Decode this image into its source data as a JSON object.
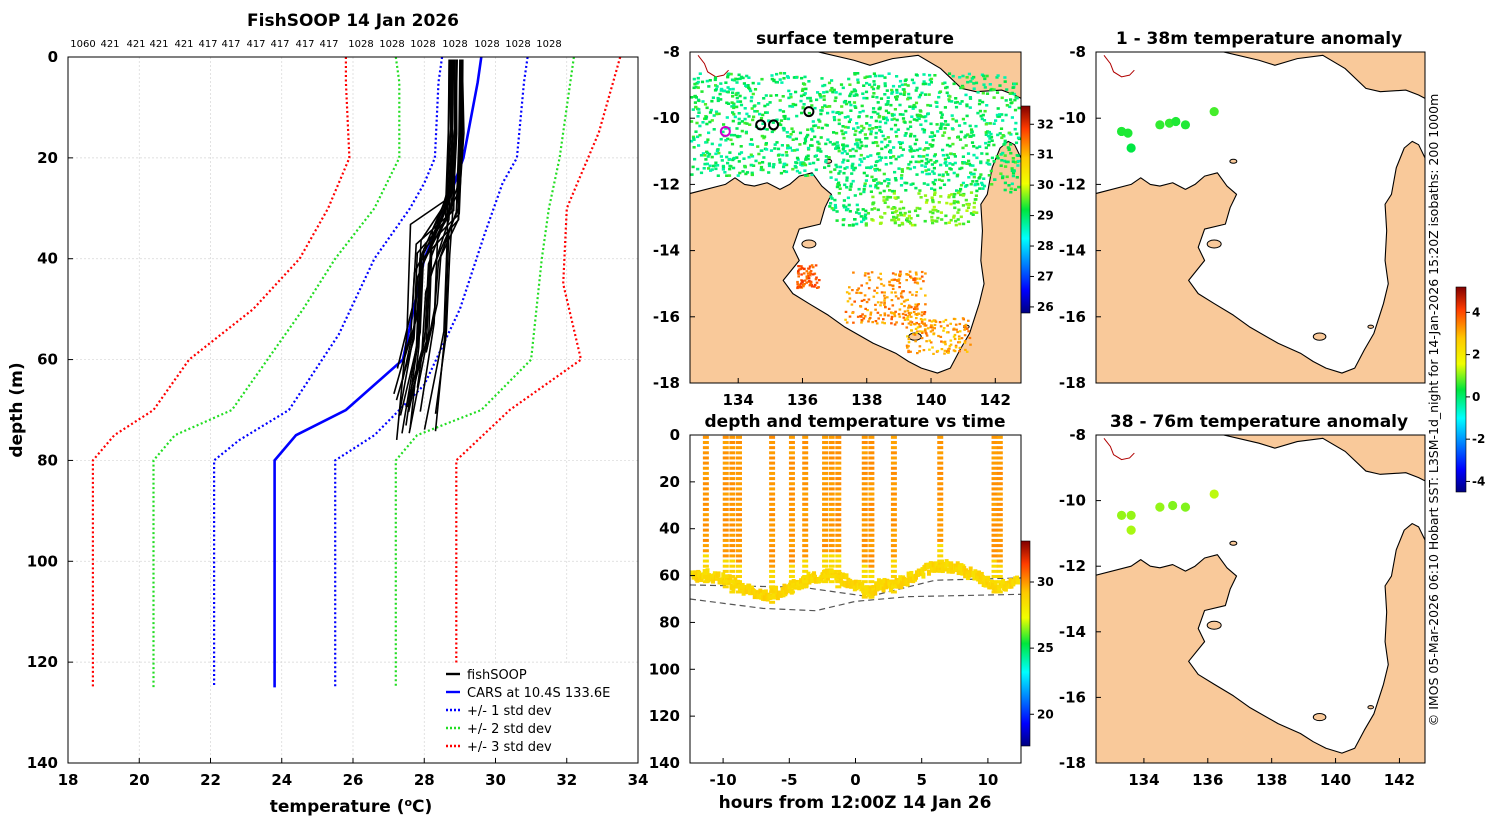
{
  "colors": {
    "fishsoop": "#000000",
    "cars": "#0000ff",
    "std1": "#0000ff",
    "std2": "#22dd22",
    "std3": "#ff0000",
    "land": "#f9c99a",
    "coast": "#000000",
    "grid": "#d6d6d6",
    "dashed": "#555555"
  },
  "chart_data": [
    {
      "id": "profile",
      "type": "line",
      "title": "FishSOOP 14 Jan 2026",
      "xlabel": "temperature (°C)",
      "ylabel": "depth (m)",
      "xlim": [
        18,
        34
      ],
      "ylim": [
        0,
        140
      ],
      "y_reversed": true,
      "grid": true,
      "xticks": [
        "18",
        "20",
        "22",
        "24",
        "26",
        "28",
        "30",
        "32",
        "34"
      ],
      "yticks": [
        "0",
        "20",
        "40",
        "60",
        "80",
        "100",
        "120",
        "140"
      ],
      "top_labels": [
        "1060",
        "421",
        "421",
        "421",
        "421",
        "417",
        "417",
        "417",
        "417",
        "417",
        "417",
        "1028",
        "1028",
        "1028",
        "1028",
        "1028",
        "1028",
        "1028"
      ],
      "legend": [
        {
          "label": "fishSOOP",
          "style": "solid",
          "color": "#000000"
        },
        {
          "label": "CARS at 10.4S 133.6E",
          "style": "solid",
          "color": "#0000ff"
        },
        {
          "label": "+/- 1 std dev",
          "style": "dotted",
          "color": "#0000ff"
        },
        {
          "label": "+/- 2 std dev",
          "style": "dotted",
          "color": "#22dd22"
        },
        {
          "label": "+/- 3 std dev",
          "style": "dotted",
          "color": "#ff0000"
        }
      ],
      "legend_position": "bottom-right",
      "cars_mean": {
        "temp": [
          29.6,
          29.5,
          29.1,
          28.6,
          28.0,
          27.4,
          25.8,
          24.4,
          23.8,
          23.8
        ],
        "depth": [
          0,
          5,
          20,
          30,
          40,
          60,
          70,
          75,
          80,
          125
        ]
      },
      "std_curves": [
        {
          "name": "minus1",
          "color": "#0000ff",
          "temp": [
            28.5,
            28.4,
            28.3,
            28.0,
            27.6,
            26.6,
            25.6,
            24.2,
            22.8,
            22.1,
            22.1
          ],
          "depth": [
            0,
            5,
            20,
            25,
            30,
            40,
            55,
            70,
            76,
            80,
            125
          ]
        },
        {
          "name": "plus1",
          "color": "#0000ff",
          "temp": [
            30.9,
            30.8,
            30.6,
            30.2,
            29.7,
            29.0,
            28.0,
            26.6,
            25.5,
            25.5
          ],
          "depth": [
            0,
            5,
            20,
            25,
            35,
            50,
            65,
            75,
            80,
            125
          ]
        },
        {
          "name": "minus2",
          "color": "#22dd22",
          "temp": [
            27.2,
            27.3,
            27.3,
            26.6,
            25.5,
            24.6,
            22.6,
            21.0,
            20.4,
            20.4
          ],
          "depth": [
            0,
            5,
            20,
            30,
            40,
            50,
            70,
            75,
            80,
            125
          ]
        },
        {
          "name": "plus2",
          "color": "#22dd22",
          "temp": [
            32.2,
            32.1,
            31.8,
            31.5,
            31.3,
            31.0,
            29.6,
            27.8,
            27.2,
            27.2
          ],
          "depth": [
            0,
            5,
            20,
            30,
            40,
            60,
            70,
            75,
            80,
            125
          ]
        },
        {
          "name": "minus3",
          "color": "#ff0000",
          "temp": [
            25.8,
            25.8,
            25.9,
            25.3,
            24.5,
            23.2,
            21.4,
            20.4,
            19.3,
            18.7,
            18.7
          ],
          "depth": [
            0,
            5,
            20,
            30,
            40,
            50,
            60,
            70,
            75,
            80,
            125
          ]
        },
        {
          "name": "plus3",
          "color": "#ff0000",
          "temp": [
            33.5,
            33.3,
            32.9,
            32.6,
            32.3,
            32.0,
            31.9,
            32.4,
            31.4,
            30.4,
            28.9,
            28.9
          ],
          "depth": [
            0,
            5,
            15,
            20,
            25,
            30,
            45,
            60,
            65,
            70,
            80,
            125
          ]
        }
      ],
      "fishsoop_bundle": {
        "surface_temp_range": [
          28.7,
          29.1
        ],
        "mixed_bottom_depth_range": [
          25,
          33
        ],
        "thermocline_temp_range": [
          27.3,
          28.7
        ],
        "bottom_depth_range": [
          58,
          76
        ],
        "count": 22
      }
    },
    {
      "id": "sst-map",
      "type": "heatmap",
      "title": "surface temperature",
      "xlim": [
        132.5,
        142.8
      ],
      "ylim": [
        -18,
        -8
      ],
      "xticks": [
        "134",
        "136",
        "138",
        "140",
        "142"
      ],
      "yticks": [
        "-8",
        "-10",
        "-12",
        "-14",
        "-16",
        "-18"
      ],
      "colorbar_ticks": [
        "26",
        "27",
        "28",
        "29",
        "30",
        "31",
        "32"
      ],
      "colorbar_range": [
        25.8,
        32.6
      ],
      "markers": [
        {
          "lon": 133.6,
          "lat": -10.4,
          "color": "#cc00cc"
        },
        {
          "lon": 134.7,
          "lat": -10.2,
          "color": "#000000"
        },
        {
          "lon": 135.1,
          "lat": -10.2,
          "color": "#000000"
        },
        {
          "lon": 136.2,
          "lat": -9.8,
          "color": "#000000"
        }
      ]
    },
    {
      "id": "depth-time",
      "type": "scatter",
      "title": "depth and temperature vs time",
      "xlabel": "hours from 12:00Z 14 Jan 26",
      "xlim": [
        -12.5,
        12.5
      ],
      "ylim": [
        0,
        140
      ],
      "y_reversed": true,
      "xticks": [
        "-10",
        "-5",
        "0",
        "5",
        "10"
      ],
      "yticks": [
        "0",
        "20",
        "40",
        "60",
        "80",
        "100",
        "120",
        "140"
      ],
      "colorbar_ticks": [
        "20",
        "25",
        "30"
      ],
      "colorbar_range": [
        17.6,
        33.1
      ],
      "casts": [
        -11.3,
        -9.8,
        -9.3,
        -8.8,
        -6.3,
        -4.8,
        -3.8,
        -2.3,
        -1.8,
        -1.3,
        0.7,
        1.2,
        2.9,
        6.4,
        10.5,
        10.9
      ]
    },
    {
      "id": "anom-shallow",
      "type": "scatter",
      "title": "1 - 38m temperature anomaly",
      "xlim": [
        132.5,
        142.8
      ],
      "ylim": [
        -18,
        -8
      ],
      "xticks": [
        "134",
        "136",
        "138",
        "140",
        "142"
      ],
      "yticks": [
        "-8",
        "-10",
        "-12",
        "-14",
        "-16",
        "-18"
      ],
      "points": [
        {
          "lon": 133.3,
          "lat": -10.4,
          "anom": 0.5
        },
        {
          "lon": 133.5,
          "lat": -10.45,
          "anom": 0.5
        },
        {
          "lon": 133.6,
          "lat": -10.9,
          "anom": 0.3
        },
        {
          "lon": 134.5,
          "lat": -10.2,
          "anom": 0.6
        },
        {
          "lon": 134.8,
          "lat": -10.15,
          "anom": 0.6
        },
        {
          "lon": 135.0,
          "lat": -10.1,
          "anom": 0.5
        },
        {
          "lon": 135.3,
          "lat": -10.2,
          "anom": 0.5
        },
        {
          "lon": 136.2,
          "lat": -9.8,
          "anom": 0.7
        }
      ]
    },
    {
      "id": "anom-deep",
      "type": "scatter",
      "title": "38 - 76m temperature anomaly",
      "xlim": [
        132.5,
        142.8
      ],
      "ylim": [
        -18,
        -8
      ],
      "xticks": [
        "134",
        "136",
        "138",
        "140",
        "142"
      ],
      "yticks": [
        "-8",
        "-10",
        "-12",
        "-14",
        "-16",
        "-18"
      ],
      "colorbar_ticks": [
        "-4",
        "-2",
        "0",
        "2",
        "4"
      ],
      "colorbar_range": [
        -4.5,
        5.2
      ],
      "points": [
        {
          "lon": 133.3,
          "lat": -10.45,
          "anom": 1.1
        },
        {
          "lon": 133.6,
          "lat": -10.45,
          "anom": 1.1
        },
        {
          "lon": 133.6,
          "lat": -10.9,
          "anom": 1.2
        },
        {
          "lon": 134.5,
          "lat": -10.2,
          "anom": 1.1
        },
        {
          "lon": 134.9,
          "lat": -10.15,
          "anom": 1.0
        },
        {
          "lon": 135.3,
          "lat": -10.2,
          "anom": 1.0
        },
        {
          "lon": 136.2,
          "lat": -9.8,
          "anom": 1.3
        }
      ]
    }
  ],
  "credit": "© IMOS 05-Mar-2026 06:10 Hobart SST: L3SM-1d_night for 14-Jan-2026 15:20Z isobaths: 200  1000m"
}
